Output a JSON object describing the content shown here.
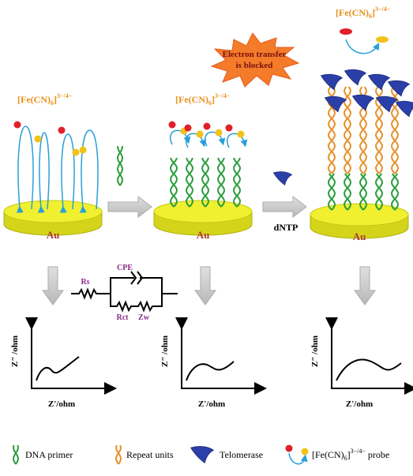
{
  "steps": [
    {
      "probe_label": {
        "main": "[Fe(CN)",
        "sub": "6",
        "close": "]",
        "sup": "3−/4−"
      },
      "electrode": "Au",
      "impedance": {
        "y_label": "Z″ /ohm",
        "x_label": "Z'/ohm"
      }
    },
    {
      "probe_label": {
        "main": "[Fe(CN)",
        "sub": "6",
        "close": "]",
        "sup": "3−/4−"
      },
      "electrode": "Au",
      "impedance": {
        "y_label": "Z″ /ohm",
        "x_label": "Z'/ohm"
      }
    },
    {
      "probe_label": {
        "main": "[Fe(CN)",
        "sub": "6",
        "close": "]",
        "sup": "3−/4−"
      },
      "electrode": "Au",
      "impedance": {
        "y_label": "Z″ /ohm",
        "x_label": "Z'/ohm"
      },
      "blocked_note": [
        "Electron transfer",
        "is blocked"
      ]
    }
  ],
  "dntp_label": "dNTP",
  "circuit": {
    "cpe": "CPE",
    "rs": "Rs",
    "rct": "Rct",
    "zw": "Zw"
  },
  "legend": {
    "primer": "DNA primer",
    "repeat": "Repeat units",
    "telomerase": "Telomerase",
    "probe": {
      "main": "[Fe(CN)",
      "sub": "6",
      "close": "]",
      "sup": "3−/4−",
      "suffix": " probe"
    }
  }
}
